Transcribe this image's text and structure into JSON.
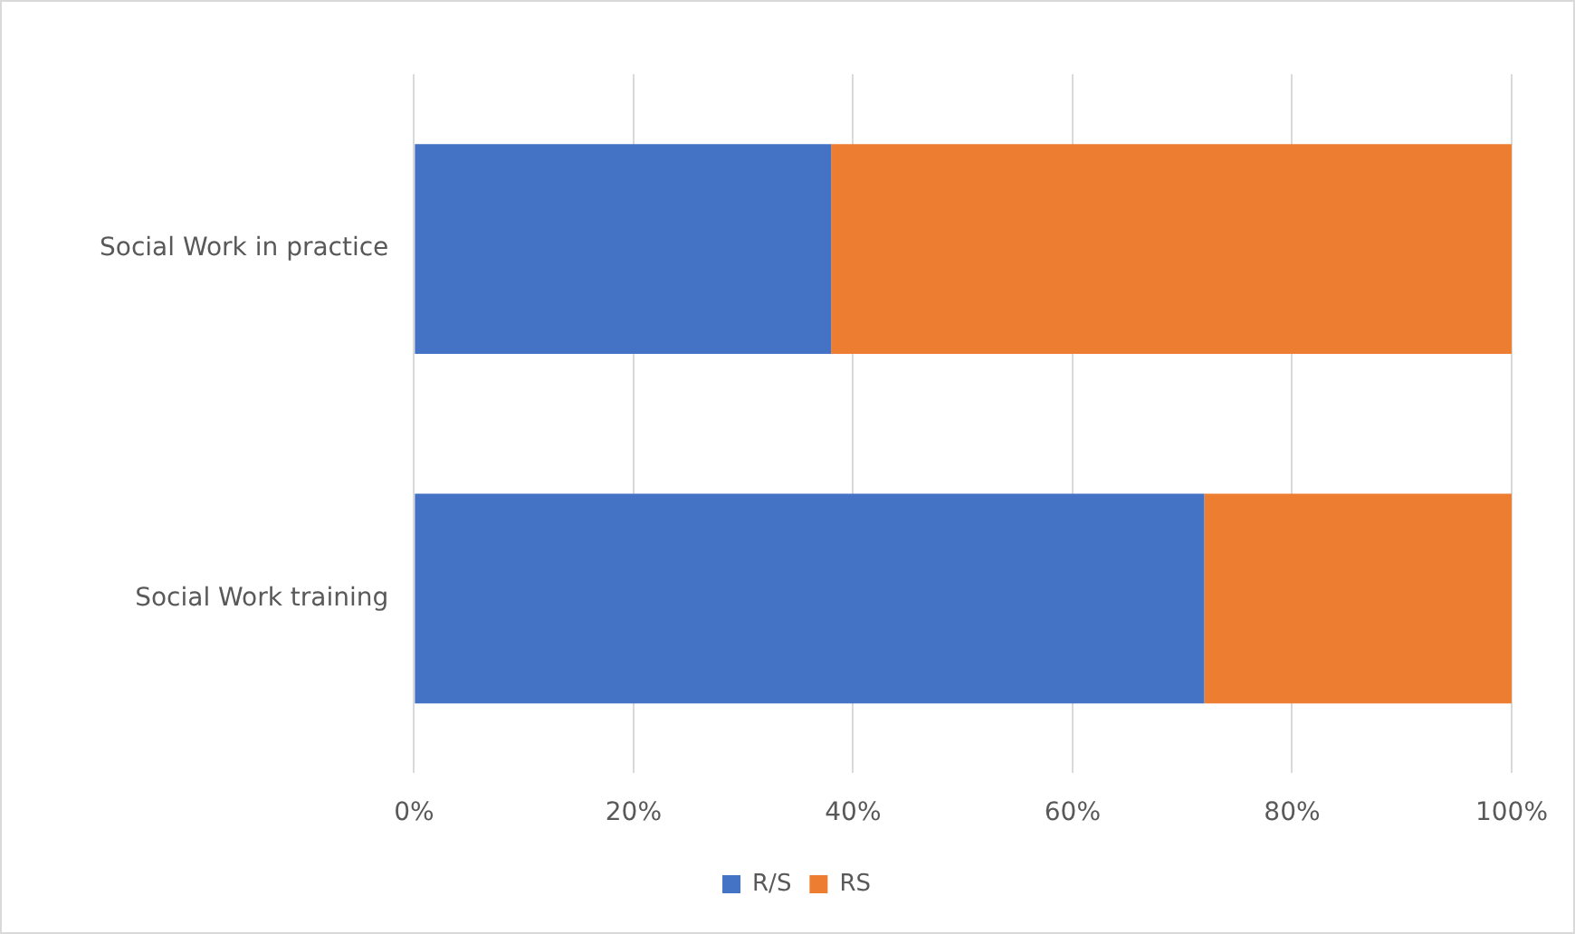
{
  "chart_data": {
    "type": "bar",
    "orientation": "horizontal",
    "stacked": true,
    "categories": [
      "Social Work in practice",
      "Social Work training"
    ],
    "series": [
      {
        "name": "R/S",
        "color": "#4472c4",
        "values": [
          38,
          72
        ]
      },
      {
        "name": "RS",
        "color": "#ed7d31",
        "values": [
          62,
          28
        ]
      }
    ],
    "xlim": [
      0,
      100
    ],
    "xticks": [
      {
        "value": 0,
        "label": "0%"
      },
      {
        "value": 20,
        "label": "20%"
      },
      {
        "value": 40,
        "label": "40%"
      },
      {
        "value": 60,
        "label": "60%"
      },
      {
        "value": 80,
        "label": "80%"
      },
      {
        "value": 100,
        "label": "100%"
      }
    ],
    "grid": "x",
    "legend": "bottom"
  }
}
